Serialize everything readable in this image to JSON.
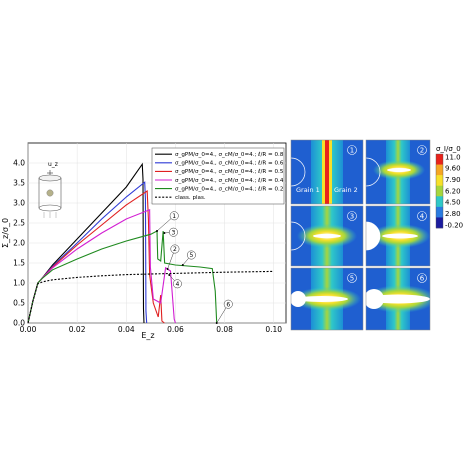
{
  "chart_data": {
    "type": "line",
    "xlabel": "E_z",
    "ylabel": "Σ_z/σ_0",
    "xlim": [
      0.0,
      0.105
    ],
    "ylim": [
      0.0,
      4.5
    ],
    "x_ticks": [
      "0.00",
      "0.02",
      "0.04",
      "0.06",
      "0.08",
      "0.10"
    ],
    "y_ticks": [
      "0.0",
      "0.5",
      "1.0",
      "1.5",
      "2.0",
      "2.5",
      "3.0",
      "3.5",
      "4.0"
    ],
    "x_tick_values": [
      0,
      0.02,
      0.04,
      0.06,
      0.08,
      0.1
    ],
    "y_tick_values": [
      0,
      0.5,
      1.0,
      1.5,
      2.0,
      2.5,
      3.0,
      3.5,
      4.0
    ],
    "grid": true,
    "legend_position": "top-right",
    "inset_label": "u_z",
    "series": [
      {
        "name": "σ_gPM/σ_0=4., σ_cM/σ_0=4.; ℓ/R = 0.8",
        "color": "#000000",
        "dash": "",
        "points": [
          [
            0,
            0
          ],
          [
            0.002,
            0.55
          ],
          [
            0.004,
            1.0
          ],
          [
            0.0055,
            1.1
          ],
          [
            0.01,
            1.45
          ],
          [
            0.02,
            2.1
          ],
          [
            0.03,
            2.75
          ],
          [
            0.04,
            3.4
          ],
          [
            0.0465,
            3.97
          ],
          [
            0.0468,
            3.6
          ],
          [
            0.047,
            0.35
          ],
          [
            0.0472,
            0.0
          ]
        ]
      },
      {
        "name": "σ_gPM/σ_0=4., σ_cM/σ_0=4.; ℓ/R = 0.6",
        "color": "#2e3ad6",
        "dash": "",
        "points": [
          [
            0,
            0
          ],
          [
            0.002,
            0.55
          ],
          [
            0.004,
            1.0
          ],
          [
            0.0055,
            1.1
          ],
          [
            0.01,
            1.42
          ],
          [
            0.02,
            2.0
          ],
          [
            0.03,
            2.6
          ],
          [
            0.04,
            3.15
          ],
          [
            0.0475,
            3.52
          ],
          [
            0.0478,
            3.1
          ],
          [
            0.048,
            0.3
          ],
          [
            0.0483,
            0.0
          ]
        ]
      },
      {
        "name": "σ_gPM/σ_0=4., σ_cM/σ_0=4.; ℓ/R = 0.5",
        "color": "#e02020",
        "dash": "",
        "points": [
          [
            0,
            0
          ],
          [
            0.002,
            0.55
          ],
          [
            0.004,
            1.0
          ],
          [
            0.0055,
            1.1
          ],
          [
            0.01,
            1.4
          ],
          [
            0.02,
            1.95
          ],
          [
            0.03,
            2.45
          ],
          [
            0.04,
            2.95
          ],
          [
            0.0485,
            3.3
          ],
          [
            0.049,
            2.6
          ],
          [
            0.0495,
            1.2
          ],
          [
            0.051,
            0.5
          ],
          [
            0.053,
            0.15
          ],
          [
            0.054,
            0.7
          ],
          [
            0.0545,
            0.05
          ],
          [
            0.0555,
            0.0
          ]
        ]
      },
      {
        "name": "σ_gPM/σ_0=4., σ_cM/σ_0=4.; ℓ/R = 0.4",
        "color": "#d21ed2",
        "dash": "",
        "points": [
          [
            0,
            0
          ],
          [
            0.002,
            0.55
          ],
          [
            0.004,
            1.0
          ],
          [
            0.0055,
            1.1
          ],
          [
            0.01,
            1.38
          ],
          [
            0.02,
            1.85
          ],
          [
            0.03,
            2.25
          ],
          [
            0.04,
            2.6
          ],
          [
            0.0495,
            2.83
          ],
          [
            0.0498,
            1.4
          ],
          [
            0.051,
            0.6
          ],
          [
            0.054,
            0.5
          ],
          [
            0.056,
            1.38
          ],
          [
            0.058,
            1.3
          ],
          [
            0.0595,
            0.1
          ],
          [
            0.06,
            0.0
          ]
        ]
      },
      {
        "name": "σ_gPM/σ_0=4., σ_cM/σ_0=4.; ℓ/R = 0.2",
        "color": "#1f8a1f",
        "dash": "",
        "points": [
          [
            0,
            0
          ],
          [
            0.002,
            0.55
          ],
          [
            0.004,
            1.0
          ],
          [
            0.0055,
            1.1
          ],
          [
            0.01,
            1.33
          ],
          [
            0.02,
            1.6
          ],
          [
            0.03,
            1.85
          ],
          [
            0.04,
            2.05
          ],
          [
            0.05,
            2.22
          ],
          [
            0.0525,
            2.3
          ],
          [
            0.0528,
            1.6
          ],
          [
            0.054,
            1.55
          ],
          [
            0.055,
            2.3
          ],
          [
            0.0556,
            1.5
          ],
          [
            0.06,
            1.45
          ],
          [
            0.07,
            1.4
          ],
          [
            0.075,
            1.36
          ],
          [
            0.0762,
            0.8
          ],
          [
            0.0768,
            0.0
          ]
        ]
      },
      {
        "name": "class. plas.",
        "color": "#000000",
        "dash": "2,1.6",
        "points": [
          [
            0,
            0
          ],
          [
            0.002,
            0.55
          ],
          [
            0.004,
            0.98
          ],
          [
            0.006,
            1.03
          ],
          [
            0.01,
            1.08
          ],
          [
            0.02,
            1.14
          ],
          [
            0.03,
            1.18
          ],
          [
            0.04,
            1.21
          ],
          [
            0.06,
            1.24
          ],
          [
            0.08,
            1.27
          ],
          [
            0.1,
            1.29
          ]
        ]
      }
    ],
    "callouts": [
      {
        "label": "1",
        "x": 0.0525,
        "y": 2.3,
        "lx": 0.0595,
        "ly": 2.68
      },
      {
        "label": "2",
        "x": 0.0568,
        "y": 1.35,
        "lx": 0.0598,
        "ly": 1.85
      },
      {
        "label": "3",
        "x": 0.0555,
        "y": 2.25,
        "lx": 0.0592,
        "ly": 2.27
      },
      {
        "label": "4",
        "x": 0.0575,
        "y": 1.2,
        "lx": 0.0608,
        "ly": 0.98
      },
      {
        "label": "5",
        "x": 0.063,
        "y": 1.45,
        "lx": 0.0665,
        "ly": 1.7
      },
      {
        "label": "6",
        "x": 0.0768,
        "y": 0.0,
        "lx": 0.0815,
        "ly": 0.47
      }
    ]
  },
  "contour_panel": {
    "colorbar_title": "σ_I/σ_0",
    "colorbar_ticks": [
      "11.0",
      "9.60",
      "7.90",
      "6.20",
      "4.50",
      "2.80",
      "-0.20"
    ],
    "colorbar_colors": [
      "#e8231b",
      "#f5a623",
      "#f7e02a",
      "#a6d63d",
      "#2fc8c8",
      "#2a7be0",
      "#1c1c9e"
    ],
    "panels": [
      "1",
      "2",
      "3",
      "4",
      "5",
      "6"
    ],
    "grain_labels": [
      "Grain 1",
      "Grain 2"
    ]
  }
}
